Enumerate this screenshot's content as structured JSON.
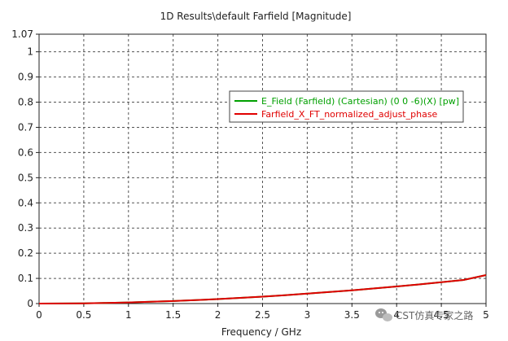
{
  "chart_data": {
    "type": "line",
    "title": "1D Results\\default Farfield [Magnitude]",
    "xlabel": "Frequency / GHz",
    "ylabel": "",
    "xlim": [
      0,
      5
    ],
    "ylim": [
      0,
      1.07
    ],
    "xticks": [
      "0",
      "0.5",
      "1",
      "1.5",
      "2",
      "2.5",
      "3",
      "3.5",
      "4",
      "4.5",
      "5"
    ],
    "yticks": [
      "0",
      "0.1",
      "0.2",
      "0.3",
      "0.4",
      "0.5",
      "0.6",
      "0.7",
      "0.8",
      "0.9",
      "1",
      "1.07"
    ],
    "x": [
      0,
      0.25,
      0.5,
      0.75,
      1,
      1.25,
      1.5,
      1.75,
      2,
      2.25,
      2.5,
      2.75,
      3,
      3.25,
      3.5,
      3.75,
      4,
      4.25,
      4.5,
      4.75,
      5
    ],
    "series": [
      {
        "name": "E_Field (Farfield) (Cartesian) (0 0 -6)(X) [pw]",
        "color": "#00a000",
        "values": [
          0,
          0.0003,
          0.0011,
          0.0025,
          0.0045,
          0.007,
          0.01,
          0.0137,
          0.0178,
          0.0225,
          0.0276,
          0.0332,
          0.0393,
          0.0458,
          0.0527,
          0.0601,
          0.0679,
          0.0761,
          0.0847,
          0.0937,
          0.113
        ]
      },
      {
        "name": "Farfield_X_FT_normalized_adjust_phase",
        "color": "#e00000",
        "values": [
          0,
          0.0003,
          0.0011,
          0.0025,
          0.0045,
          0.007,
          0.01,
          0.0137,
          0.0178,
          0.0225,
          0.0276,
          0.0332,
          0.0393,
          0.0458,
          0.0527,
          0.0601,
          0.0679,
          0.0761,
          0.0847,
          0.0937,
          0.113
        ]
      }
    ],
    "grid": true,
    "legend_position": "top-right"
  },
  "watermark": {
    "text": "CST仿真专家之路",
    "icon": "wechat-icon"
  }
}
